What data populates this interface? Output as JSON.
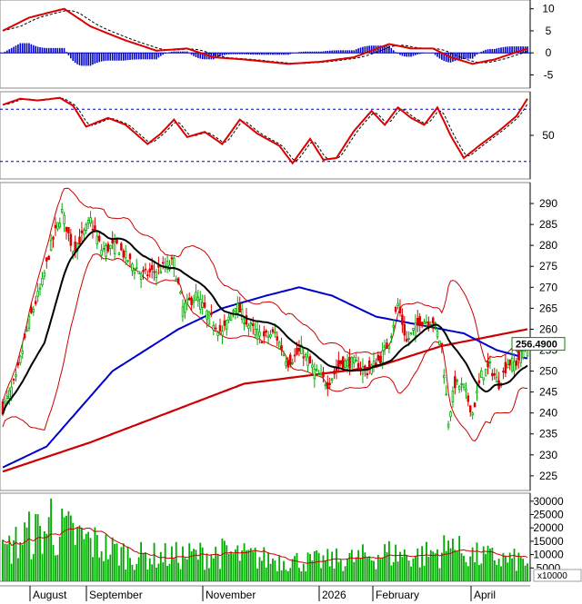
{
  "chart_data": [
    {
      "type": "line",
      "panel": "MACD",
      "ylim": [
        -8,
        12
      ],
      "y_ticks": [
        10,
        5,
        0,
        -5
      ],
      "series": [],
      "histogram": true
    },
    {
      "type": "line",
      "panel": "oscillator",
      "ylim": [
        0,
        100
      ],
      "y_ticks": [
        50
      ],
      "levels": [
        80,
        20
      ],
      "series": []
    },
    {
      "type": "candlestick",
      "panel": "price",
      "ylim": [
        221.5,
        295
      ],
      "y_ticks": [
        225,
        230,
        235,
        240,
        245,
        250,
        255,
        260,
        265,
        270,
        275,
        280,
        285,
        290
      ],
      "last_price_label": "256.4900",
      "last_price": 256.49,
      "colors": {
        "up": "#00aa00",
        "down": "#dd0000",
        "bands": "#cc0000",
        "ma_long": "#cc0000",
        "ma_mid": "#0000cc",
        "ma_short": "#000000"
      },
      "series": []
    },
    {
      "type": "bar",
      "panel": "volume",
      "ylim": [
        0,
        33000
      ],
      "y_ticks": [
        30000,
        25000,
        20000,
        15000,
        10000,
        5000
      ],
      "unit_label": "x10000",
      "series": []
    }
  ],
  "x_axis": {
    "labels": [
      "August",
      "September",
      "November",
      "2026",
      "February",
      "April"
    ]
  }
}
